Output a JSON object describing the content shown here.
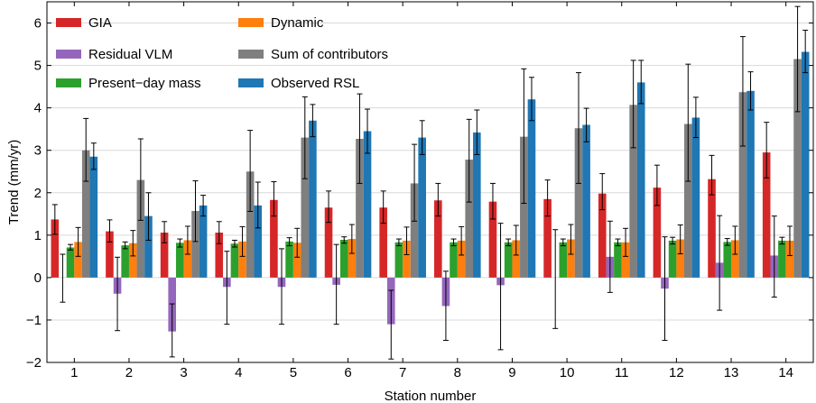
{
  "chart_data": {
    "type": "bar",
    "xlabel": "Station number",
    "ylabel": "Trend (mm/yr)",
    "ylim": [
      -2,
      6.5
    ],
    "yticks": [
      -2,
      -1,
      0,
      1,
      2,
      3,
      4,
      5,
      6
    ],
    "ytick_labels": [
      "−2",
      "−1",
      "0",
      "1",
      "2",
      "3",
      "4",
      "5",
      "6"
    ],
    "grid": "horizontal",
    "legend_position": "top-left",
    "categories": [
      "1",
      "2",
      "3",
      "4",
      "5",
      "6",
      "7",
      "8",
      "9",
      "10",
      "11",
      "12",
      "13",
      "14"
    ],
    "series": [
      {
        "name": "GIA",
        "color": "#d62728",
        "values": [
          1.37,
          1.09,
          1.06,
          1.06,
          1.83,
          1.65,
          1.65,
          1.82,
          1.79,
          1.85,
          1.98,
          2.12,
          2.32,
          2.95
        ],
        "err_low": [
          1.02,
          0.84,
          0.82,
          0.8,
          1.45,
          1.3,
          1.28,
          1.45,
          1.38,
          1.45,
          1.6,
          1.7,
          1.95,
          2.35
        ],
        "err_high": [
          1.72,
          1.36,
          1.32,
          1.32,
          2.26,
          2.04,
          2.04,
          2.22,
          2.22,
          2.3,
          2.45,
          2.65,
          2.88,
          3.66
        ]
      },
      {
        "name": "Residual VLM",
        "color": "#9467bd",
        "values": [
          0.0,
          -0.38,
          -1.27,
          -0.22,
          -0.22,
          -0.17,
          -1.1,
          -0.67,
          -0.18,
          0.0,
          0.49,
          -0.26,
          0.35,
          0.52
        ],
        "err_low": [
          -0.58,
          -1.25,
          -1.87,
          -1.1,
          -1.1,
          -1.1,
          -1.92,
          -1.48,
          -1.7,
          -1.2,
          -0.35,
          -1.48,
          -0.77,
          -0.46
        ],
        "err_high": [
          0.55,
          0.48,
          -0.62,
          0.62,
          0.68,
          0.78,
          -0.3,
          0.15,
          1.28,
          1.13,
          1.33,
          0.96,
          1.46,
          1.45
        ]
      },
      {
        "name": "Present-day mass",
        "color": "#2ca02c",
        "values": [
          0.71,
          0.76,
          0.82,
          0.8,
          0.85,
          0.89,
          0.83,
          0.83,
          0.83,
          0.83,
          0.83,
          0.87,
          0.84,
          0.87
        ],
        "err_low": [
          0.65,
          0.68,
          0.72,
          0.72,
          0.75,
          0.81,
          0.75,
          0.75,
          0.75,
          0.75,
          0.75,
          0.79,
          0.76,
          0.79
        ],
        "err_high": [
          0.78,
          0.84,
          0.91,
          0.88,
          0.94,
          0.96,
          0.91,
          0.91,
          0.91,
          0.91,
          0.91,
          0.95,
          0.92,
          0.95
        ]
      },
      {
        "name": "Dynamic",
        "color": "#ff7f0e",
        "values": [
          0.84,
          0.81,
          0.88,
          0.85,
          0.82,
          0.91,
          0.87,
          0.87,
          0.88,
          0.9,
          0.83,
          0.9,
          0.88,
          0.87
        ],
        "err_low": [
          0.5,
          0.51,
          0.55,
          0.5,
          0.48,
          0.57,
          0.54,
          0.53,
          0.53,
          0.55,
          0.5,
          0.56,
          0.55,
          0.52
        ],
        "err_high": [
          1.18,
          1.11,
          1.21,
          1.2,
          1.16,
          1.25,
          1.19,
          1.2,
          1.23,
          1.25,
          1.16,
          1.24,
          1.21,
          1.21
        ]
      },
      {
        "name": "Sum of contributors",
        "color": "#7f7f7f",
        "values": [
          3.0,
          2.3,
          1.57,
          2.5,
          3.3,
          3.27,
          2.22,
          2.78,
          3.32,
          3.52,
          4.07,
          3.62,
          4.37,
          5.15
        ],
        "err_low": [
          2.27,
          1.35,
          0.85,
          1.56,
          2.33,
          2.22,
          1.33,
          1.78,
          1.75,
          2.22,
          3.06,
          2.27,
          3.1,
          3.91
        ],
        "err_high": [
          3.75,
          3.27,
          2.28,
          3.47,
          4.26,
          4.33,
          3.14,
          3.73,
          4.92,
          4.83,
          5.12,
          5.03,
          5.68,
          6.39
        ]
      },
      {
        "name": "Observed RSL",
        "color": "#1f77b4",
        "values": [
          2.85,
          1.45,
          1.7,
          1.7,
          3.7,
          3.45,
          3.3,
          3.42,
          4.2,
          3.6,
          4.6,
          3.77,
          4.4,
          5.32
        ],
        "err_low": [
          2.55,
          0.88,
          1.45,
          1.17,
          3.32,
          2.93,
          2.9,
          2.9,
          3.7,
          3.2,
          4.1,
          3.3,
          3.95,
          4.83
        ],
        "err_high": [
          3.17,
          2.0,
          1.94,
          2.25,
          4.08,
          3.97,
          3.7,
          3.95,
          4.72,
          3.99,
          5.12,
          4.25,
          4.85,
          5.83
        ]
      }
    ],
    "legend": [
      {
        "label": "GIA",
        "color": "#d62728"
      },
      {
        "label": "Dynamic",
        "color": "#ff7f0e"
      },
      {
        "label": "Residual VLM",
        "color": "#9467bd"
      },
      {
        "label": "Sum of contributors",
        "color": "#7f7f7f"
      },
      {
        "label": "Present−day mass",
        "color": "#2ca02c"
      },
      {
        "label": "Observed RSL",
        "color": "#1f77b4"
      }
    ]
  }
}
